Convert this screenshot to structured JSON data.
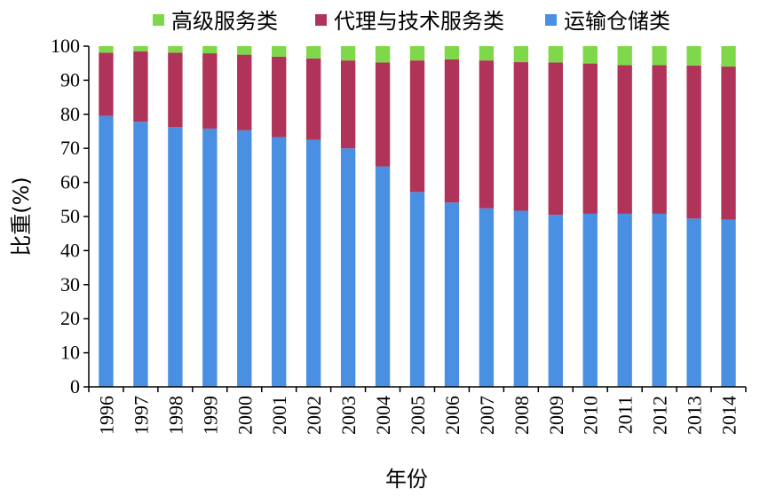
{
  "chart_data": {
    "type": "bar",
    "stacked": true,
    "categories": [
      "1996",
      "1997",
      "1998",
      "1999",
      "2000",
      "2001",
      "2002",
      "2003",
      "2004",
      "2005",
      "2006",
      "2007",
      "2008",
      "2009",
      "2010",
      "2011",
      "2012",
      "2013",
      "2014"
    ],
    "series": [
      {
        "name": "运输仓储类",
        "color": "#4a90e2",
        "values": [
          79.5,
          77.8,
          76.3,
          75.8,
          75.3,
          73.3,
          72.5,
          70,
          64.7,
          57.2,
          54.1,
          52.4,
          51.7,
          50.5,
          50.8,
          50.8,
          50.8,
          49.4,
          49.1
        ]
      },
      {
        "name": "代理与技术服务类",
        "color": "#b0345a",
        "values": [
          18.6,
          20.7,
          21.8,
          22.1,
          22.2,
          23.6,
          23.9,
          25.8,
          30.5,
          38.6,
          42,
          43.4,
          43.6,
          44.7,
          44.1,
          43.6,
          43.6,
          44.9,
          44.9
        ]
      },
      {
        "name": "高级服务类",
        "color": "#7fd84a",
        "values": [
          1.9,
          1.5,
          1.9,
          2.1,
          2.5,
          3.1,
          3.6,
          4.2,
          4.8,
          4.2,
          3.9,
          4.2,
          4.7,
          4.8,
          5.1,
          5.6,
          5.6,
          5.7,
          6
        ]
      }
    ],
    "legend_order": [
      "高级服务类",
      "代理与技术服务类",
      "运输仓储类"
    ],
    "legend_position": "top",
    "xlabel": "年份",
    "ylabel": "比重(%)",
    "ylim": [
      0,
      100
    ],
    "yticks": [
      0,
      10,
      20,
      30,
      40,
      50,
      60,
      70,
      80,
      90,
      100
    ],
    "grid": false
  }
}
